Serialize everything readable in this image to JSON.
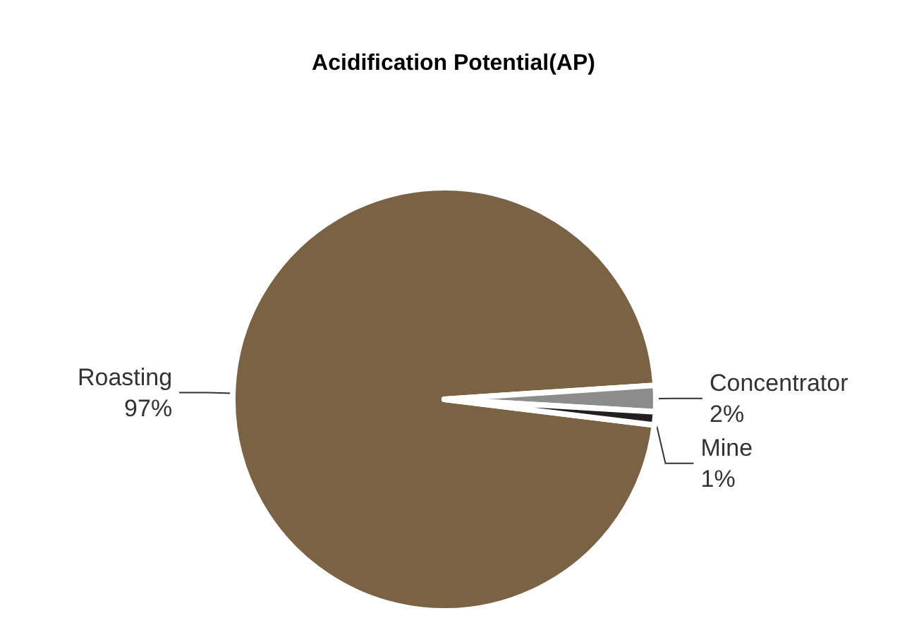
{
  "chart_data": {
    "type": "pie",
    "title": "Acidification Potential(AP)",
    "categories": [
      "Roasting",
      "Concentrator",
      "Mine"
    ],
    "values": [
      97,
      2,
      1
    ],
    "value_labels": [
      "97%",
      "2%",
      "1%"
    ],
    "colors": [
      "#7a6244",
      "#8c8c8c",
      "#231f20"
    ]
  }
}
